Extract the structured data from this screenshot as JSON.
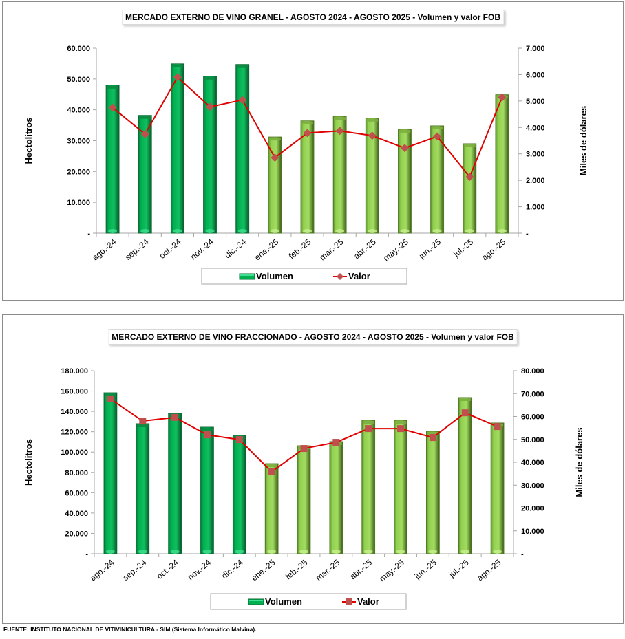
{
  "chart_data": [
    {
      "type": "bar",
      "title": "MERCADO EXTERNO DE VINO GRANEL - AGOSTO 2024 - AGOSTO 2025 - Volumen y valor FOB",
      "categories": [
        "ago.-24",
        "sep.-24",
        "oct.-24",
        "nov.-24",
        "dic.-24",
        "ene.-25",
        "feb.-25",
        "mar.-25",
        "abr.-25",
        "may.-25",
        "jun.-25",
        "jul.-25",
        "ago.-25"
      ],
      "ylabel": "Hectolitros",
      "y2label": "Miles de dólares",
      "ylim": [
        0,
        60000
      ],
      "y2lim": [
        0,
        7000
      ],
      "yticks": [
        "-",
        "10.000",
        "20.000",
        "30.000",
        "40.000",
        "50.000",
        "60.000"
      ],
      "y2ticks": [
        "-",
        "1.000",
        "2.000",
        "3.000",
        "4.000",
        "5.000",
        "6.000",
        "7.000"
      ],
      "grid": false,
      "legend": "bottom-center",
      "series": [
        {
          "name": "Volumen",
          "type": "bar",
          "axis": "left",
          "values": [
            48000,
            38200,
            54900,
            50900,
            54700,
            31200,
            36400,
            37900,
            37300,
            33700,
            34800,
            29000,
            44900
          ]
        },
        {
          "name": "Valor",
          "type": "line",
          "axis": "right",
          "marker": "diamond",
          "values": [
            4750,
            3750,
            5900,
            4780,
            5040,
            2860,
            3790,
            3870,
            3690,
            3220,
            3660,
            2130,
            5140
          ]
        }
      ]
    },
    {
      "type": "bar",
      "title": "MERCADO EXTERNO DE VINO FRACCIONADO - AGOSTO 2024 - AGOSTO 2025 - Volumen y valor FOB",
      "categories": [
        "ago.-24",
        "sep.-24",
        "oct.-24",
        "nov.-24",
        "dic.-24",
        "ene.-25",
        "feb.-25",
        "mar.-25",
        "abr.-25",
        "may.-25",
        "jun.-25",
        "jul.-25",
        "ago.-25"
      ],
      "ylabel": "Hectolitros",
      "y2label": "Miles de dólares",
      "ylim": [
        0,
        180000
      ],
      "y2lim": [
        0,
        80000
      ],
      "yticks": [
        "-",
        "20.000",
        "40.000",
        "60.000",
        "80.000",
        "100.000",
        "120.000",
        "140.000",
        "160.000",
        "180.000"
      ],
      "y2ticks": [
        "-",
        "10.000",
        "20.000",
        "30.000",
        "40.000",
        "50.000",
        "60.000",
        "70.000",
        "80.000"
      ],
      "grid": false,
      "legend": "bottom-center",
      "series": [
        {
          "name": "Volumen",
          "type": "bar",
          "axis": "left",
          "values": [
            158300,
            127900,
            138000,
            124500,
            116400,
            88600,
            106200,
            110300,
            131300,
            131300,
            120400,
            153600,
            128600
          ]
        },
        {
          "name": "Valor",
          "type": "line",
          "axis": "right",
          "marker": "square",
          "values": [
            67700,
            58000,
            59600,
            52000,
            49900,
            35800,
            46000,
            48700,
            54700,
            54700,
            50800,
            61600,
            55600
          ]
        }
      ]
    }
  ],
  "colors": {
    "bar_2024": "#00b050",
    "bar_2025": "#92d050",
    "line": "#e00000",
    "marker": "#c0504d"
  },
  "footer": "FUENTE: INSTITUTO NACIONAL DE VITIVINICULTURA - SIM (Sistema Informático Malvina)."
}
